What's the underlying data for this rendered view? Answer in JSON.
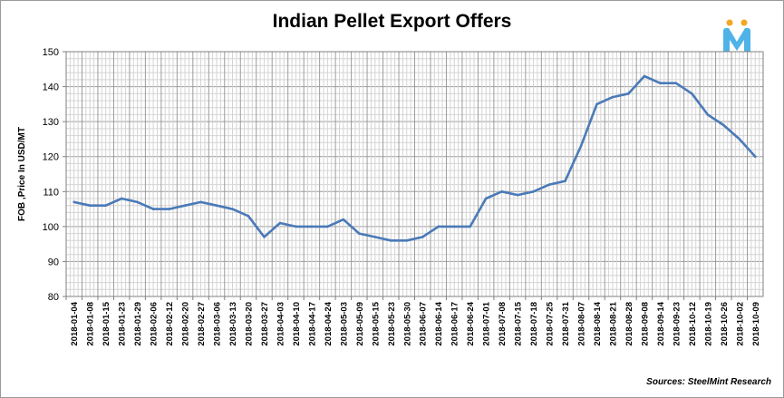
{
  "chart_data": {
    "type": "line",
    "title": "Indian Pellet Export Offers",
    "ylabel": "FOB ,Price In USD/MT",
    "xlabel": "",
    "ylim": [
      80,
      150
    ],
    "yticks": [
      80,
      90,
      100,
      110,
      120,
      130,
      140,
      150
    ],
    "grid": true,
    "legend": "none",
    "line_color": "#4a7ab8",
    "x_tick_labels": [
      "2018-01-04",
      "2018-01-08",
      "2018-01-15",
      "2018-01-23",
      "2018-01-29",
      "2018-02-06",
      "2018-02-12",
      "2018-02-20",
      "2018-02-27",
      "2018-03-06",
      "2018-03-13",
      "2018-03-20",
      "2018-03-27",
      "2018-04-03",
      "2018-04-10",
      "2018-04-17",
      "2018-04-24",
      "2018-05-03",
      "2018-05-09",
      "2018-05-15",
      "2018-05-23",
      "2018-05-30",
      "2018-06-07",
      "2018-06-14",
      "2018-06-17",
      "2018-06-24",
      "2018-07-01",
      "2018-07-08",
      "2018-07-15",
      "2018-07-18",
      "2018-07-25",
      "2018-07-31",
      "2018-08-07",
      "2018-08-14",
      "2018-08-21",
      "2018-08-28",
      "2018-09-08",
      "2018-09-14",
      "2018-09-23",
      "2018-10-12",
      "2018-10-19",
      "2018-10-26",
      "2018-10-02",
      "2018-10-09"
    ],
    "values": [
      107,
      106,
      106,
      108,
      107,
      105,
      105,
      106,
      107,
      106,
      105,
      103,
      97,
      101,
      100,
      100,
      100,
      102,
      98,
      97,
      96,
      96,
      97,
      100,
      100,
      100,
      108,
      110,
      109,
      110,
      112,
      113,
      123,
      135,
      137,
      138,
      143,
      141,
      141,
      138,
      132,
      129,
      125,
      120
    ]
  },
  "source_text": "Sources: SteelMint Research",
  "logo": {
    "name": "steelmint-logo",
    "letter": "M",
    "colors": [
      "#4fb3e8",
      "#f5a623"
    ]
  }
}
